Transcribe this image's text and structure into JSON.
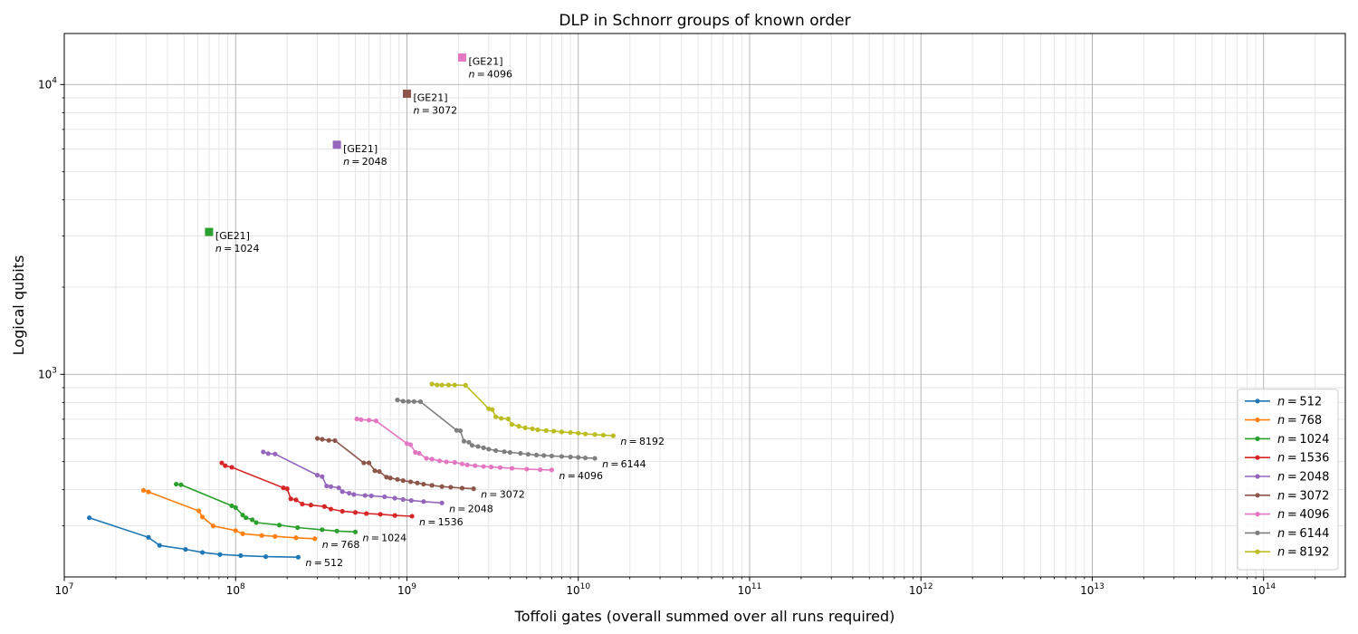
{
  "chart_data": {
    "type": "line",
    "title": "DLP in Schnorr groups of known order",
    "xlabel": "Toffoli gates (overall summed over all runs required)",
    "ylabel": "Logical qubits",
    "xscale": "log",
    "yscale": "log",
    "xlim": [
      10000000,
      300000000000000
    ],
    "ylim": [
      200,
      15000
    ],
    "x_ticks": [
      {
        "value": 10000000,
        "base": "10",
        "exp": "7"
      },
      {
        "value": 100000000,
        "base": "10",
        "exp": "8"
      },
      {
        "value": 1000000000,
        "base": "10",
        "exp": "9"
      },
      {
        "value": 10000000000,
        "base": "10",
        "exp": "10"
      },
      {
        "value": 100000000000,
        "base": "10",
        "exp": "11"
      },
      {
        "value": 1000000000000,
        "base": "10",
        "exp": "12"
      },
      {
        "value": 10000000000000,
        "base": "10",
        "exp": "13"
      },
      {
        "value": 100000000000000,
        "base": "10",
        "exp": "14"
      }
    ],
    "y_ticks": [
      {
        "value": 1000,
        "base": "10",
        "exp": "3"
      },
      {
        "value": 10000,
        "base": "10",
        "exp": "4"
      }
    ],
    "grid": true,
    "legend_position": "lower-right",
    "series": [
      {
        "name": "n = 512",
        "color": "#1f77b4",
        "label": "n = 512",
        "x": [
          14000000,
          31000000,
          36000000,
          51000000,
          64000000,
          81000000,
          107000000,
          150000000,
          232000000
        ],
        "y": [
          320,
          274,
          257,
          249,
          243,
          239,
          237,
          235,
          234
        ]
      },
      {
        "name": "n = 768",
        "color": "#ff7f0e",
        "label": "n = 768",
        "x": [
          29000000,
          31000000,
          61000000,
          64000000,
          74000000,
          100000000,
          110000000,
          142000000,
          170000000,
          225000000,
          290000000
        ],
        "y": [
          398,
          393,
          338,
          322,
          300,
          289,
          282,
          278,
          276,
          273,
          271
        ]
      },
      {
        "name": "n = 1024",
        "color": "#2ca02c",
        "label": "n = 1024",
        "x": [
          45000000,
          48000000,
          95000000,
          100000000,
          110000000,
          115000000,
          125000000,
          132000000,
          180000000,
          230000000,
          320000000,
          390000000,
          500000000
        ],
        "y": [
          418,
          416,
          352,
          347,
          327,
          320,
          315,
          308,
          302,
          296,
          291,
          288,
          286
        ]
      },
      {
        "name": "n = 1536",
        "color": "#d62728",
        "label": "n = 1536",
        "x": [
          83000000,
          87000000,
          95000000,
          190000000,
          200000000,
          210000000,
          225000000,
          245000000,
          275000000,
          330000000,
          360000000,
          420000000,
          500000000,
          580000000,
          700000000,
          850000000,
          1070000000
        ],
        "y": [
          495,
          484,
          478,
          406,
          403,
          372,
          369,
          357,
          354,
          350,
          343,
          337,
          334,
          331,
          329,
          326,
          324
        ]
      },
      {
        "name": "n = 2048",
        "color": "#9467bd",
        "label": "n = 2048",
        "x": [
          145000000,
          155000000,
          170000000,
          300000000,
          320000000,
          340000000,
          360000000,
          400000000,
          420000000,
          460000000,
          490000000,
          570000000,
          620000000,
          740000000,
          850000000,
          950000000,
          1060000000,
          1250000000,
          1600000000
        ],
        "y": [
          540,
          533,
          531,
          449,
          444,
          412,
          410,
          406,
          394,
          389,
          385,
          382,
          381,
          378,
          374,
          370,
          367,
          364,
          360
        ]
      },
      {
        "name": "n = 3072",
        "color": "#8c564b",
        "label": "n = 3072",
        "x": [
          300000000,
          320000000,
          350000000,
          380000000,
          560000000,
          600000000,
          650000000,
          690000000,
          760000000,
          800000000,
          880000000,
          950000000,
          1050000000,
          1150000000,
          1250000000,
          1400000000,
          1600000000,
          1800000000,
          2100000000,
          2450000000
        ],
        "y": [
          601,
          597,
          592,
          591,
          495,
          495,
          465,
          462,
          442,
          439,
          434,
          430,
          426,
          422,
          418,
          414,
          410,
          408,
          405,
          403
        ]
      },
      {
        "name": "n = 4096",
        "color": "#e377c2",
        "label": "n = 4096",
        "x": [
          510000000,
          540000000,
          600000000,
          660000000,
          1000000000,
          1050000000,
          1120000000,
          1180000000,
          1300000000,
          1400000000,
          1550000000,
          1700000000,
          1900000000,
          2100000000,
          2250000000,
          2500000000,
          2800000000,
          3100000000,
          3500000000,
          4100000000,
          5000000000,
          6000000000,
          7000000000
        ],
        "y": [
          702,
          698,
          695,
          691,
          577,
          572,
          538,
          534,
          513,
          510,
          503,
          499,
          497,
          491,
          487,
          484,
          481,
          479,
          477,
          474,
          471,
          469,
          468
        ]
      },
      {
        "name": "n = 6144",
        "color": "#7f7f7f",
        "label": "n = 6144",
        "x": [
          880000000,
          950000000,
          1020000000,
          1100000000,
          1200000000,
          1950000000,
          2050000000,
          2150000000,
          2300000000,
          2400000000,
          2600000000,
          2800000000,
          3000000000,
          3300000000,
          3700000000,
          4000000000,
          4600000000,
          5100000000,
          5700000000,
          6300000000,
          7000000000,
          8000000000,
          9000000000,
          10000000000,
          11000000000,
          12500000000
        ],
        "y": [
          816,
          808,
          806,
          806,
          805,
          641,
          639,
          588,
          583,
          569,
          564,
          558,
          552,
          546,
          541,
          538,
          534,
          530,
          527,
          525,
          523,
          521,
          519,
          517,
          515,
          513
        ]
      },
      {
        "name": "n = 8192",
        "color": "#bcbd22",
        "label": "n = 8192",
        "x": [
          1400000000,
          1500000000,
          1600000000,
          1750000000,
          1900000000,
          2200000000,
          3000000000,
          3150000000,
          3300000000,
          3550000000,
          3900000000,
          4100000000,
          4500000000,
          4900000000,
          5400000000,
          5800000000,
          6500000000,
          7200000000,
          8000000000,
          9000000000,
          10000000000,
          11000000000,
          12500000000,
          14000000000,
          16000000000
        ],
        "y": [
          926,
          920,
          919,
          919,
          919,
          917,
          761,
          756,
          714,
          705,
          702,
          672,
          662,
          654,
          649,
          644,
          640,
          637,
          633,
          630,
          627,
          623,
          620,
          617,
          614
        ]
      }
    ],
    "reference_points": [
      {
        "color": "#2ca02c",
        "x": 70000000,
        "y": 3100,
        "label1": "[GE21]",
        "label2": "n = 1024"
      },
      {
        "color": "#9467bd",
        "x": 390000000,
        "y": 6200,
        "label1": "[GE21]",
        "label2": "n = 2048"
      },
      {
        "color": "#8c564b",
        "x": 1000000000,
        "y": 9300,
        "label1": "[GE21]",
        "label2": "n = 3072"
      },
      {
        "color": "#e377c2",
        "x": 2100000000,
        "y": 12400,
        "label1": "[GE21]",
        "label2": "n = 4096"
      }
    ]
  }
}
